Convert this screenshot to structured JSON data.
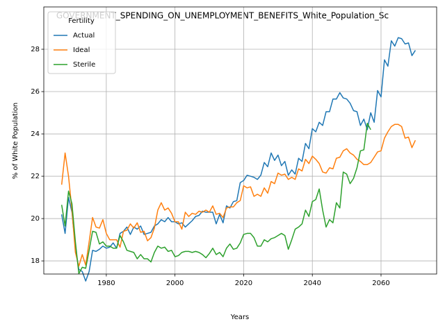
{
  "chart_data": {
    "type": "line",
    "title": "GOVERNMENT_SPENDING_ON_UNEMPLOYMENT_BENEFITS_White_Population_Sc",
    "x_label": "Years",
    "y_label": "% of White Population",
    "legend_title": "Fertility",
    "legend": "upper left",
    "grid": true,
    "x": [
      1967,
      1968,
      1969,
      1970,
      1971,
      1972,
      1973,
      1974,
      1975,
      1976,
      1977,
      1978,
      1979,
      1980,
      1981,
      1982,
      1983,
      1984,
      1985,
      1986,
      1987,
      1988,
      1989,
      1990,
      1991,
      1992,
      1993,
      1994,
      1995,
      1996,
      1997,
      1998,
      1999,
      2000,
      2001,
      2002,
      2003,
      2004,
      2005,
      2006,
      2007,
      2008,
      2009,
      2010,
      2011,
      2012,
      2013,
      2014,
      2015,
      2016,
      2017,
      2018,
      2019,
      2020,
      2021,
      2022,
      2023,
      2024,
      2025,
      2026,
      2027,
      2028,
      2029,
      2030,
      2031,
      2032,
      2033,
      2034,
      2035,
      2036,
      2037,
      2038,
      2039,
      2040,
      2041,
      2042,
      2043,
      2044,
      2045,
      2046,
      2047,
      2048,
      2049,
      2050,
      2051,
      2052,
      2053,
      2054,
      2055,
      2056,
      2057,
      2058,
      2059,
      2060,
      2061,
      2062,
      2063,
      2064,
      2065,
      2066,
      2067,
      2068,
      2069,
      2070
    ],
    "series": [
      {
        "name": "Actual",
        "color": "#1f77b4",
        "values": [
          20.2,
          19.3,
          21.0,
          20.3,
          18.6,
          17.6,
          17.5,
          17.05,
          17.5,
          18.5,
          18.45,
          18.55,
          18.7,
          18.6,
          18.65,
          18.85,
          18.6,
          19.3,
          19.4,
          19.6,
          19.25,
          19.6,
          19.5,
          19.65,
          19.25,
          19.3,
          19.35,
          19.65,
          19.75,
          19.95,
          19.85,
          20.05,
          19.85,
          19.85,
          19.75,
          19.8,
          19.6,
          19.75,
          19.9,
          20.1,
          20.15,
          20.35,
          20.3,
          20.3,
          20.3,
          19.75,
          20.2,
          19.8,
          20.6,
          20.5,
          20.8,
          20.85,
          21.7,
          21.8,
          22.05,
          22.0,
          21.95,
          21.85,
          22.05,
          22.65,
          22.45,
          23.1,
          22.75,
          23.0,
          22.5,
          22.7,
          22.05,
          22.3,
          22.1,
          22.85,
          22.7,
          23.55,
          23.3,
          24.25,
          24.1,
          24.55,
          24.4,
          25.05,
          25.05,
          25.65,
          25.65,
          25.95,
          25.7,
          25.65,
          25.45,
          25.1,
          25.05,
          24.4,
          24.7,
          24.2,
          25.0,
          24.55,
          26.05,
          25.75,
          27.5,
          27.2,
          28.4,
          28.15,
          28.55,
          28.5,
          28.25,
          28.3,
          27.7,
          27.95
        ]
      },
      {
        "name": "Ideal",
        "color": "#ff7f0e",
        "values": [
          21.6,
          23.1,
          22.0,
          20.4,
          18.4,
          17.75,
          18.3,
          17.8,
          18.9,
          20.05,
          19.6,
          19.55,
          19.95,
          19.3,
          19.0,
          19.0,
          19.0,
          18.65,
          19.4,
          19.45,
          19.75,
          19.55,
          19.8,
          19.35,
          19.4,
          18.95,
          19.1,
          19.55,
          20.4,
          20.75,
          20.4,
          20.5,
          20.25,
          19.85,
          19.85,
          19.5,
          20.3,
          20.1,
          20.25,
          20.2,
          20.35,
          20.3,
          20.4,
          20.3,
          20.6,
          20.2,
          20.25,
          20.05,
          20.5,
          20.55,
          20.55,
          20.75,
          20.85,
          21.55,
          21.45,
          21.5,
          21.05,
          21.15,
          21.05,
          21.45,
          21.2,
          21.75,
          21.65,
          22.15,
          22.05,
          22.1,
          21.85,
          21.95,
          21.85,
          22.35,
          22.25,
          22.8,
          22.6,
          22.95,
          22.8,
          22.6,
          22.2,
          22.15,
          22.4,
          22.35,
          22.85,
          22.9,
          23.2,
          23.3,
          23.1,
          23.0,
          22.8,
          22.7,
          22.55,
          22.55,
          22.65,
          22.9,
          23.15,
          23.2,
          23.8,
          24.1,
          24.35,
          24.45,
          24.45,
          24.35,
          23.8,
          23.85,
          23.35,
          23.7
        ]
      },
      {
        "name": "Sterile",
        "color": "#2ca02c",
        "values": [
          20.65,
          19.65,
          21.3,
          20.7,
          18.9,
          17.4,
          17.7,
          17.65,
          18.5,
          19.4,
          19.35,
          18.8,
          18.9,
          18.7,
          18.7,
          18.6,
          18.6,
          19.2,
          18.9,
          18.5,
          18.45,
          18.4,
          18.1,
          18.3,
          18.1,
          18.1,
          17.95,
          18.4,
          18.7,
          18.6,
          18.65,
          18.45,
          18.5,
          18.2,
          18.25,
          18.4,
          18.45,
          18.45,
          18.4,
          18.45,
          18.4,
          18.3,
          18.15,
          18.35,
          18.6,
          18.3,
          18.4,
          18.2,
          18.6,
          18.8,
          18.55,
          18.6,
          18.85,
          19.25,
          19.3,
          19.3,
          19.1,
          18.7,
          18.7,
          19.0,
          18.9,
          19.05,
          19.1,
          19.2,
          19.3,
          19.2,
          18.55,
          19.0,
          19.5,
          19.6,
          19.75,
          20.4,
          20.1,
          20.8,
          20.9,
          21.4,
          20.4,
          19.6,
          19.95,
          19.8,
          20.75,
          20.5,
          22.2,
          22.1,
          21.65,
          21.9,
          22.4,
          23.2,
          23.25,
          24.5,
          24.2,
          null,
          null,
          null,
          null,
          null,
          null,
          null,
          null,
          null,
          null,
          null,
          null,
          null
        ]
      }
    ],
    "xlim": [
      1961.8,
      2076.2
    ],
    "xticks": [
      1980,
      2000,
      2020,
      2040,
      2060
    ],
    "ylim": [
      17.38,
      30.0
    ],
    "yticks": [
      18,
      20,
      22,
      24,
      26,
      28
    ]
  }
}
